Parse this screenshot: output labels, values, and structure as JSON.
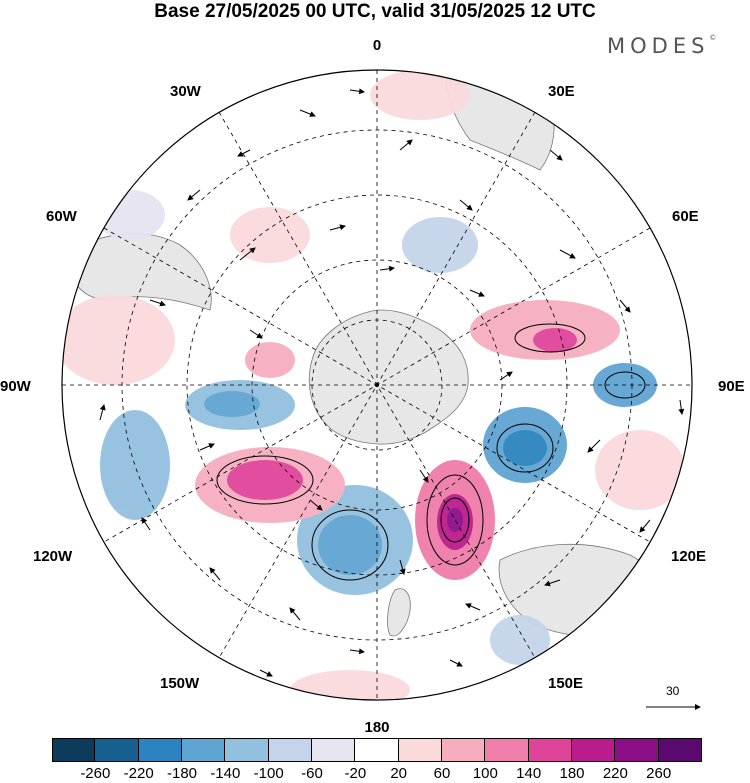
{
  "title": "Base 27/05/2025 00 UTC, valid 31/05/2025 12 UTC",
  "brand": "MODES",
  "brand_mark": "©",
  "longitude_labels": {
    "lon_0": "0",
    "lon_30e": "30E",
    "lon_60e": "60E",
    "lon_90e": "90E",
    "lon_120e": "120E",
    "lon_150e": "150E",
    "lon_180": "180",
    "lon_150w": "150W",
    "lon_120w": "120W",
    "lon_90w": "90W",
    "lon_60w": "60W",
    "lon_30w": "30W"
  },
  "reference_vector": {
    "label": "30",
    "icon": "arrow-right-icon"
  },
  "colorbar": {
    "ticks": [
      "-260",
      "-220",
      "-180",
      "-140",
      "-100",
      "-60",
      "-20",
      "20",
      "60",
      "100",
      "140",
      "180",
      "220",
      "260"
    ],
    "colors": [
      "#0c3b5c",
      "#15608f",
      "#2b84bf",
      "#5fa5d2",
      "#93c0df",
      "#c4d4ea",
      "#e6e4f1",
      "#ffffff",
      "#fbdadc",
      "#f6aebf",
      "#f07daa",
      "#e0449a",
      "#bb1c8d",
      "#8c0e86",
      "#5a0a6f"
    ]
  }
}
